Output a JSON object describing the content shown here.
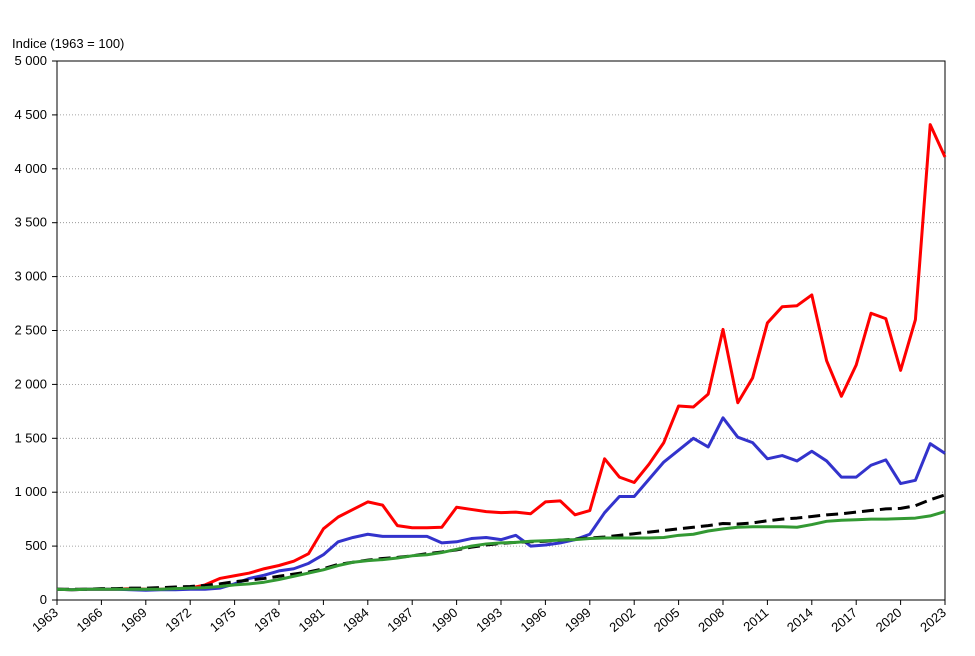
{
  "chart_data": {
    "type": "line",
    "y_axis_label": "Indice (1963 = 100)",
    "x": [
      1963,
      1964,
      1965,
      1966,
      1967,
      1968,
      1969,
      1970,
      1971,
      1972,
      1973,
      1974,
      1975,
      1976,
      1977,
      1978,
      1979,
      1980,
      1981,
      1982,
      1983,
      1984,
      1985,
      1986,
      1987,
      1988,
      1989,
      1990,
      1991,
      1992,
      1993,
      1994,
      1995,
      1996,
      1997,
      1998,
      1999,
      2000,
      2001,
      2002,
      2003,
      2004,
      2005,
      2006,
      2007,
      2008,
      2009,
      2010,
      2011,
      2012,
      2013,
      2014,
      2015,
      2016,
      2017,
      2018,
      2019,
      2020,
      2021,
      2022,
      2023
    ],
    "xlim": [
      1963,
      2023
    ],
    "xticks": [
      1963,
      1966,
      1969,
      1972,
      1975,
      1978,
      1981,
      1984,
      1987,
      1990,
      1993,
      1996,
      1999,
      2002,
      2005,
      2008,
      2011,
      2014,
      2017,
      2020,
      2023
    ],
    "ylim": [
      0,
      5000
    ],
    "yticks": [
      0,
      500,
      {
        "value": 1000,
        "label": "1 000"
      },
      {
        "value": 1500,
        "label": "1 500"
      },
      {
        "value": 2000,
        "label": "2 000"
      },
      {
        "value": 2500,
        "label": "2 500"
      },
      {
        "value": 3000,
        "label": "3 000"
      },
      {
        "value": 3500,
        "label": "3 500"
      },
      {
        "value": 4000,
        "label": "4 000"
      },
      {
        "value": 4500,
        "label": "4 500"
      },
      {
        "value": 5000,
        "label": "5 000"
      }
    ],
    "grid": true,
    "series": [
      {
        "color": "#ff0000",
        "style": "solid",
        "values": [
          100,
          95,
          100,
          100,
          100,
          105,
          100,
          100,
          105,
          110,
          140,
          200,
          225,
          250,
          290,
          320,
          360,
          430,
          660,
          770,
          840,
          910,
          880,
          690,
          670,
          670,
          675,
          860,
          840,
          820,
          810,
          815,
          800,
          910,
          920,
          790,
          830,
          1310,
          1140,
          1090,
          1260,
          1460,
          1800,
          1790,
          1910,
          2510,
          1830,
          2060,
          2570,
          2720,
          2730,
          2830,
          2220,
          1890,
          2180,
          2660,
          2610,
          2130,
          2600,
          4410,
          4110
        ]
      },
      {
        "color": "#3333cc",
        "style": "solid",
        "values": [
          100,
          95,
          100,
          100,
          100,
          95,
          90,
          95,
          95,
          100,
          100,
          110,
          150,
          200,
          230,
          270,
          290,
          340,
          420,
          540,
          580,
          610,
          590,
          590,
          590,
          590,
          530,
          540,
          570,
          580,
          560,
          600,
          500,
          510,
          530,
          560,
          610,
          810,
          960,
          960,
          1120,
          1280,
          1390,
          1500,
          1420,
          1690,
          1510,
          1460,
          1310,
          1340,
          1290,
          1380,
          1290,
          1140,
          1140,
          1250,
          1300,
          1080,
          1110,
          1450,
          1360
        ]
      },
      {
        "color": "#000000",
        "style": "dashed",
        "values": [
          100,
          100,
          100,
          105,
          105,
          110,
          110,
          115,
          120,
          125,
          135,
          150,
          170,
          185,
          200,
          220,
          240,
          260,
          290,
          330,
          350,
          370,
          385,
          395,
          410,
          430,
          445,
          465,
          490,
          510,
          525,
          535,
          540,
          545,
          555,
          565,
          575,
          585,
          600,
          615,
          630,
          645,
          660,
          675,
          690,
          710,
          705,
          715,
          735,
          750,
          760,
          775,
          790,
          800,
          815,
          830,
          845,
          850,
          875,
          930,
          975
        ]
      },
      {
        "color": "#339933",
        "style": "solid",
        "values": [
          100,
          95,
          100,
          100,
          100,
          100,
          100,
          100,
          105,
          110,
          115,
          125,
          140,
          150,
          165,
          190,
          220,
          250,
          280,
          320,
          350,
          365,
          375,
          390,
          410,
          420,
          440,
          470,
          500,
          520,
          530,
          535,
          545,
          550,
          555,
          560,
          570,
          575,
          575,
          575,
          575,
          580,
          600,
          610,
          640,
          660,
          675,
          680,
          680,
          680,
          675,
          700,
          730,
          740,
          745,
          750,
          750,
          755,
          760,
          780,
          820
        ]
      }
    ]
  }
}
